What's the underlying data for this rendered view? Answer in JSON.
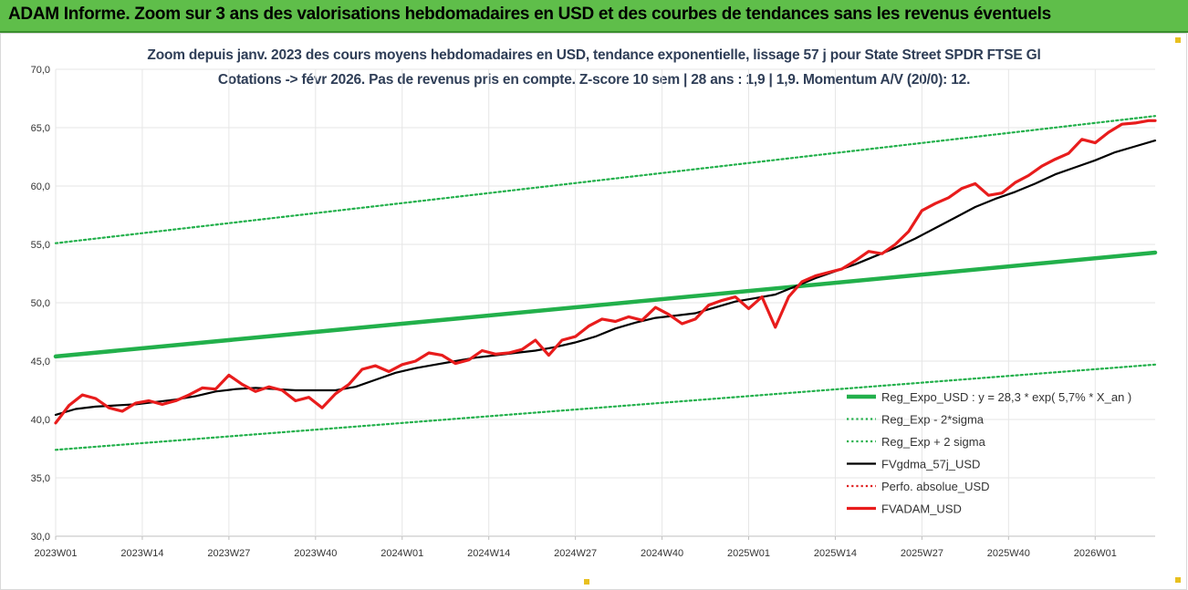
{
  "banner": {
    "title": "ADAM Informe. Zoom sur 3 ans des valorisations hebdomadaires en USD et des courbes de tendances sans les revenus éventuels"
  },
  "chart_data": {
    "type": "line",
    "title": "Zoom depuis janv. 2023 des cours moyens hebdomadaires en USD, tendance exponentielle, lissage 57 j pour State Street SPDR FTSE Gl",
    "subtitle": "Cotations -> févr 2026. Pas de revenus pris en compte. Z-score 10 sem | 28 ans : 1,9 | 1,9. Momentum A/V (20/0): 12.",
    "xlabel": "",
    "ylabel": "",
    "ylim": [
      30,
      70
    ],
    "yticks": [
      "70,0",
      "65,0",
      "60,0",
      "55,0",
      "50,0",
      "45,0",
      "40,0",
      "35,0",
      "30,0"
    ],
    "xticks": [
      "2023W01",
      "2023W14",
      "2023W27",
      "2023W40",
      "2024W01",
      "2024W14",
      "2024W27",
      "2024W40",
      "2025W01",
      "2025W14",
      "2025W27",
      "2025W40",
      "2026W01"
    ],
    "grid": true,
    "legend_position": "right",
    "series": [
      {
        "name": "Reg_Expo_USD : y = 28,3 * exp( 5,7% *  X_an )",
        "color": "#22b04b",
        "style": "solid-thick",
        "x": [
          0,
          165
        ],
        "values": [
          45.4,
          54.3
        ]
      },
      {
        "name": "Reg_Exp - 2*sigma",
        "color": "#22b04b",
        "style": "dotted",
        "x": [
          0,
          165
        ],
        "values": [
          37.4,
          44.7
        ]
      },
      {
        "name": "Reg_Exp + 2 sigma",
        "color": "#22b04b",
        "style": "dotted",
        "x": [
          0,
          165
        ],
        "values": [
          55.1,
          66.0
        ]
      },
      {
        "name": "FVgdma_57j_USD",
        "color": "#000000",
        "style": "solid",
        "x": [
          0,
          3,
          6,
          9,
          12,
          15,
          18,
          21,
          24,
          27,
          30,
          33,
          36,
          39,
          42,
          45,
          48,
          51,
          54,
          57,
          60,
          63,
          66,
          69,
          72,
          75,
          78,
          81,
          84,
          87,
          90,
          93,
          96,
          99,
          102,
          105,
          108,
          111,
          114,
          117,
          120,
          123,
          126,
          129,
          132,
          135,
          138,
          141,
          144,
          147,
          150,
          153,
          156,
          159,
          162,
          165
        ],
        "values": [
          40.4,
          40.9,
          41.1,
          41.2,
          41.3,
          41.5,
          41.7,
          42.0,
          42.4,
          42.6,
          42.7,
          42.6,
          42.5,
          42.5,
          42.5,
          42.8,
          43.4,
          44.0,
          44.4,
          44.7,
          45.0,
          45.3,
          45.5,
          45.7,
          45.9,
          46.2,
          46.6,
          47.1,
          47.8,
          48.3,
          48.7,
          48.9,
          49.1,
          49.6,
          50.1,
          50.4,
          50.7,
          51.4,
          52.1,
          52.7,
          53.3,
          54.0,
          54.7,
          55.5,
          56.4,
          57.3,
          58.2,
          58.9,
          59.5,
          60.2,
          61.0,
          61.6,
          62.2,
          62.9,
          63.4,
          63.9
        ]
      },
      {
        "name": "Perfo. absolue_USD",
        "color": "#e02020",
        "style": "dotted",
        "x": [],
        "values": []
      },
      {
        "name": "FVADAM_USD",
        "color": "#e81c1c",
        "style": "solid-thick",
        "x": [
          0,
          2,
          4,
          6,
          8,
          10,
          12,
          14,
          16,
          18,
          20,
          22,
          24,
          26,
          28,
          30,
          32,
          34,
          36,
          38,
          40,
          42,
          44,
          46,
          48,
          50,
          52,
          54,
          56,
          58,
          60,
          62,
          64,
          66,
          68,
          70,
          72,
          74,
          76,
          78,
          80,
          82,
          84,
          86,
          88,
          90,
          92,
          94,
          96,
          98,
          100,
          102,
          104,
          106,
          108,
          110,
          112,
          114,
          116,
          118,
          120,
          122,
          124,
          126,
          128,
          130,
          132,
          134,
          136,
          138,
          140,
          142,
          144,
          146,
          148,
          150,
          152,
          154,
          156,
          158,
          160,
          162,
          164,
          165
        ],
        "values": [
          39.7,
          41.2,
          42.1,
          41.8,
          41.0,
          40.7,
          41.4,
          41.6,
          41.3,
          41.6,
          42.1,
          42.7,
          42.6,
          43.8,
          43.0,
          42.4,
          42.8,
          42.5,
          41.6,
          41.9,
          41.0,
          42.2,
          43.0,
          44.3,
          44.6,
          44.1,
          44.7,
          45.0,
          45.7,
          45.5,
          44.8,
          45.1,
          45.9,
          45.6,
          45.7,
          46.0,
          46.8,
          45.5,
          46.8,
          47.1,
          48.0,
          48.6,
          48.4,
          48.8,
          48.5,
          49.6,
          49.0,
          48.2,
          48.6,
          49.8,
          50.2,
          50.5,
          49.5,
          50.5,
          47.9,
          50.5,
          51.8,
          52.3,
          52.6,
          52.9,
          53.6,
          54.4,
          54.2,
          55.0,
          56.1,
          57.9,
          58.5,
          59.0,
          59.8,
          60.2,
          59.2,
          59.4,
          60.3,
          60.9,
          61.7,
          62.3,
          62.8,
          64.0,
          63.7,
          64.6,
          65.3,
          65.4,
          65.6,
          65.6
        ]
      }
    ]
  }
}
